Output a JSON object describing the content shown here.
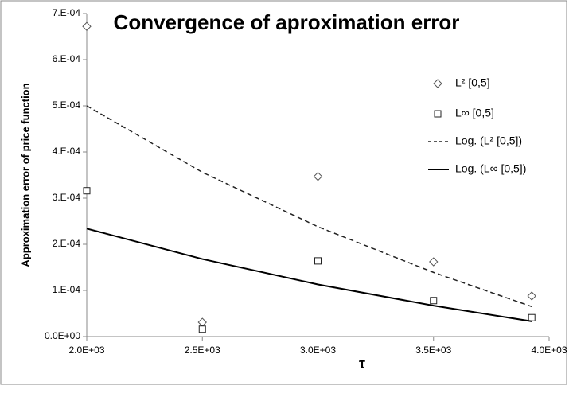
{
  "chart_data": {
    "type": "scatter",
    "title": "Convergence of aproximation error",
    "x_label": "τ",
    "y_label": "Approximation error of price function",
    "x": [
      2000,
      2500,
      3000,
      3500,
      3925
    ],
    "series": [
      {
        "name": "L² [0,5]",
        "color": "#555555",
        "marker": "diamond",
        "values": [
          0.000672,
          3.1e-05,
          0.000347,
          0.000162,
          8.8e-05
        ]
      },
      {
        "name": "L∞ [0,5]",
        "color": "#222222",
        "marker": "square",
        "values": [
          0.000316,
          1.6e-05,
          0.000164,
          7.8e-05,
          4.1e-05
        ]
      },
      {
        "name": "Log. (L² [0,5])",
        "color": "#222222",
        "line": "dashed",
        "values": [
          0.0005,
          0.000356,
          0.000238,
          0.000139,
          6.5e-05
        ]
      },
      {
        "name": "Log. (L∞ [0,5])",
        "color": "#000000",
        "line": "solid",
        "values": [
          0.000234,
          0.000168,
          0.000113,
          6.7e-05,
          3.3e-05
        ]
      }
    ],
    "xlim": [
      2000,
      4000
    ],
    "xticks": [
      {
        "value": 2000,
        "label": "2.0E+03"
      },
      {
        "value": 2500,
        "label": "2.5E+03"
      },
      {
        "value": 3000,
        "label": "3.0E+03"
      },
      {
        "value": 3500,
        "label": "3.5E+03"
      },
      {
        "value": 4000,
        "label": "4.0E+03"
      }
    ],
    "ylim": [
      0,
      0.0007
    ],
    "yticks": [
      {
        "value": 0,
        "label": "0.0E+00"
      },
      {
        "value": 0.0001,
        "label": "1.E-04"
      },
      {
        "value": 0.0002,
        "label": "2.E-04"
      },
      {
        "value": 0.0003,
        "label": "3.E-04"
      },
      {
        "value": 0.0004,
        "label": "4.E-04"
      },
      {
        "value": 0.0005,
        "label": "5.E-04"
      },
      {
        "value": 0.0006,
        "label": "6.E-04"
      },
      {
        "value": 0.0007,
        "label": "7.E-04"
      }
    ],
    "grid": false,
    "legend": "right"
  }
}
